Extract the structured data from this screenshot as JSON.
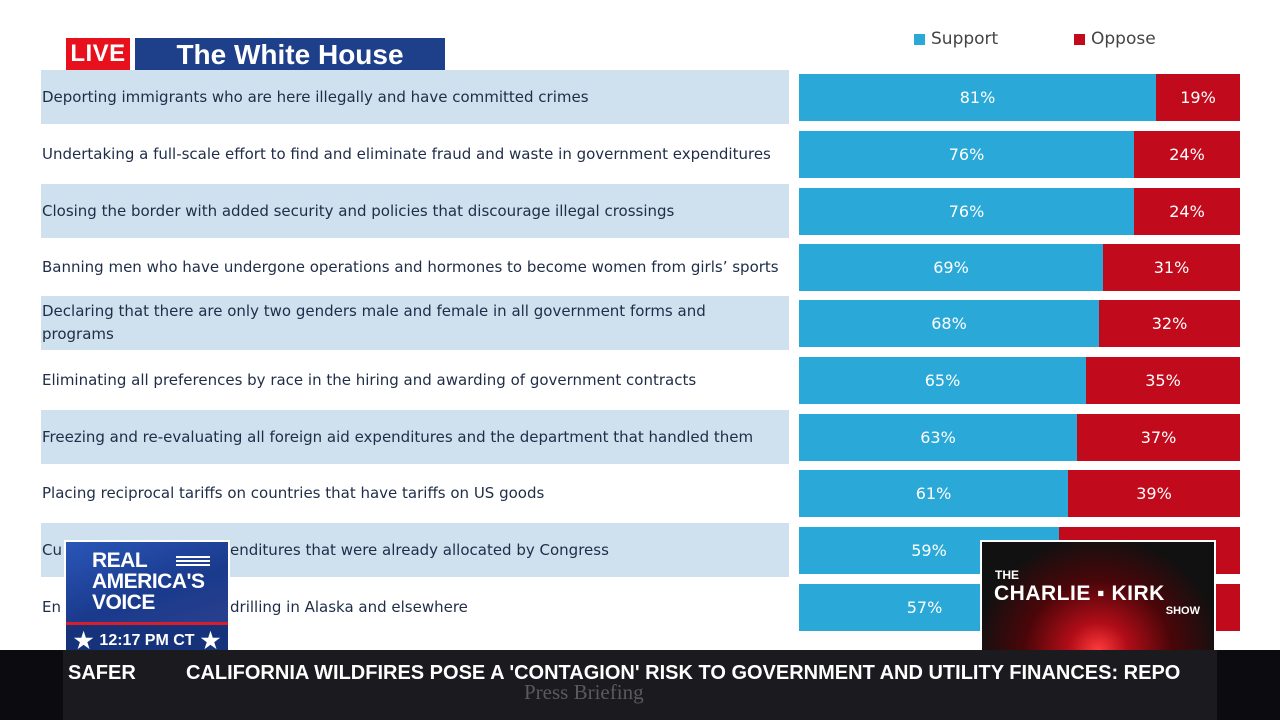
{
  "broadcast": {
    "live_label": "LIVE",
    "channel_title": "The White House"
  },
  "legend": {
    "support": "Support",
    "oppose": "Oppose"
  },
  "colors": {
    "support": "#2aa9d8",
    "oppose": "#c10b1c",
    "row_background": "#cfe0ee",
    "live_red": "#e8101c",
    "title_blue": "#1e3f8a"
  },
  "chart_data": {
    "type": "bar",
    "orientation": "horizontal",
    "stacked": true,
    "percent": true,
    "categories": [
      "Deporting immigrants who are here illegally and have committed crimes",
      "Undertaking a full-scale effort to find and eliminate fraud and waste in government expenditures",
      "Closing the border with added security and policies that discourage illegal crossings",
      "Banning men who have undergone operations and hormones to become women from girls’ sports",
      "Declaring that there are only two genders male and female in all government forms and programs",
      "Eliminating all preferences by race in the hiring and awarding of government contracts",
      "Freezing and re-evaluating all foreign aid expenditures and the department that handled them",
      "Placing reciprocal tariffs on countries that have tariffs on US goods",
      "Cu",
      "En"
    ],
    "category_tails": [
      "",
      "",
      "",
      "",
      "",
      "",
      "",
      "",
      "enditures that were already allocated by Congress",
      "drilling in Alaska and elsewhere"
    ],
    "series": [
      {
        "name": "Support",
        "values": [
          81,
          76,
          76,
          69,
          68,
          65,
          63,
          61,
          59,
          57
        ]
      },
      {
        "name": "Oppose",
        "values": [
          19,
          24,
          24,
          31,
          32,
          35,
          37,
          39,
          null,
          null
        ]
      }
    ],
    "value_labels": {
      "Support": [
        "81%",
        "76%",
        "76%",
        "69%",
        "68%",
        "65%",
        "63%",
        "61%",
        "59%",
        "57%"
      ],
      "Oppose": [
        "19%",
        "24%",
        "24%",
        "31%",
        "32%",
        "35%",
        "37%",
        "39%",
        "",
        ""
      ]
    },
    "xlim": [
      0,
      100
    ],
    "legend_position": "top-right",
    "grid": false
  },
  "overlays": {
    "network_logo": {
      "name": "REAL AMERICA'S VOICE",
      "time": "12:17 PM CT",
      "star_icon": "star-icon"
    },
    "show_logo": {
      "the": "THE",
      "name": "CHARLIE ▪ KIRK",
      "show": "SHOW"
    }
  },
  "ticker": {
    "left_fragment": "SAFER",
    "headline": "CALIFORNIA WILDFIRES POSE A 'CONTAGION' RISK TO GOVERNMENT AND UTILITY FINANCES: REPO",
    "watermark": "Press Briefing"
  }
}
